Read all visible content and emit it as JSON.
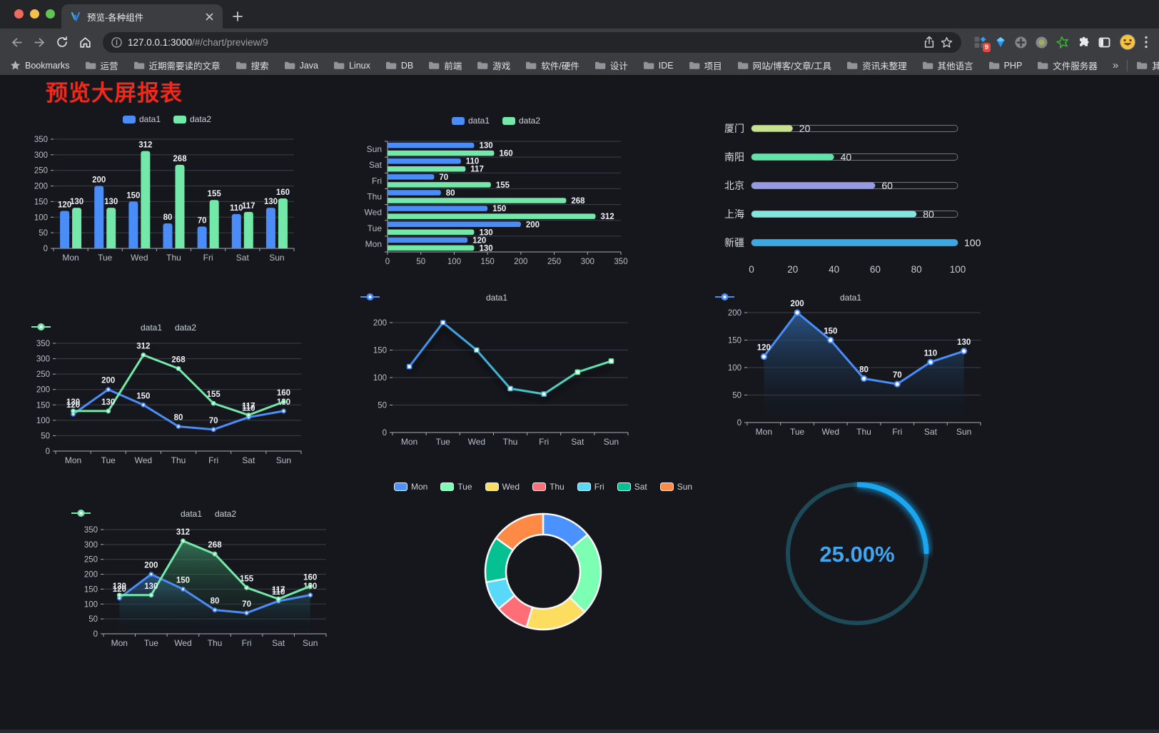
{
  "window": {
    "tab_title": "预览-各种组件",
    "url_host": "127.0.0.1:3000",
    "url_path": "/#/chart/preview/9",
    "bookmarks_label": "Bookmarks",
    "bookmarks": [
      "运营",
      "近期需要读的文章",
      "搜索",
      "Java",
      "Linux",
      "DB",
      "前端",
      "游戏",
      "软件/硬件",
      "设计",
      "IDE",
      "项目",
      "网站/博客/文章/工具",
      "资讯未整理",
      "其他语言",
      "PHP",
      "文件服务器"
    ],
    "bookmarks_overflow": "»",
    "other_bookmarks": "其他书签",
    "extension_badge": "9"
  },
  "page": {
    "title": "预览大屏报表"
  },
  "chart_data": [
    {
      "id": "bar-vertical",
      "type": "bar",
      "categories": [
        "Mon",
        "Tue",
        "Wed",
        "Thu",
        "Fri",
        "Sat",
        "Sun"
      ],
      "series": [
        {
          "name": "data1",
          "color": "#4b8df8",
          "values": [
            120,
            200,
            150,
            80,
            70,
            110,
            130
          ]
        },
        {
          "name": "data2",
          "color": "#73e8a8",
          "values": [
            130,
            130,
            312,
            268,
            155,
            117,
            160
          ]
        }
      ],
      "ylim": [
        0,
        350
      ],
      "ytick_step": 50,
      "labels": true,
      "legend_position": "top"
    },
    {
      "id": "bar-horizontal",
      "type": "hbar",
      "categories": [
        "Mon",
        "Tue",
        "Wed",
        "Thu",
        "Fri",
        "Sat",
        "Sun"
      ],
      "series": [
        {
          "name": "data1",
          "color": "#4b8df8",
          "values": [
            120,
            200,
            150,
            80,
            70,
            110,
            130
          ]
        },
        {
          "name": "data2",
          "color": "#73e8a8",
          "values": [
            130,
            130,
            312,
            268,
            155,
            117,
            160
          ]
        }
      ],
      "xlim": [
        0,
        350
      ],
      "xtick_step": 50,
      "labels": true,
      "legend_position": "top"
    },
    {
      "id": "progress-bars",
      "type": "progress",
      "max": 100,
      "xticks": [
        0,
        20,
        40,
        60,
        80,
        100
      ],
      "rows": [
        {
          "label": "厦门",
          "value": 20,
          "color": "#c6e38b"
        },
        {
          "label": "南阳",
          "value": 40,
          "color": "#5fe3a7"
        },
        {
          "label": "北京",
          "value": 60,
          "color": "#9699e3"
        },
        {
          "label": "上海",
          "value": 80,
          "color": "#84e4de"
        },
        {
          "label": "新疆",
          "value": 100,
          "color": "#3ba8e2"
        }
      ]
    },
    {
      "id": "line-two",
      "type": "line",
      "marker": "dot",
      "categories": [
        "Mon",
        "Tue",
        "Wed",
        "Thu",
        "Fri",
        "Sat",
        "Sun"
      ],
      "series": [
        {
          "name": "data1",
          "color": "#4b8df8",
          "values": [
            120,
            200,
            150,
            80,
            70,
            110,
            130
          ]
        },
        {
          "name": "data2",
          "color": "#73e8a8",
          "values": [
            130,
            130,
            312,
            268,
            155,
            117,
            160
          ]
        }
      ],
      "ylim": [
        0,
        350
      ],
      "ytick_step": 50,
      "labels": true,
      "legend_position": "top"
    },
    {
      "id": "line-gradient",
      "type": "line",
      "marker": "square",
      "shadow": true,
      "categories": [
        "Mon",
        "Tue",
        "Wed",
        "Thu",
        "Fri",
        "Sat",
        "Sun"
      ],
      "series": [
        {
          "name": "data1",
          "color": "#4b8df8",
          "gradient": [
            "#4287f5",
            "#43b9cf",
            "#67efa3"
          ],
          "values": [
            120,
            200,
            150,
            80,
            70,
            110,
            130
          ]
        }
      ],
      "ylim": [
        0,
        200
      ],
      "ytick_step": 50,
      "labels": false,
      "legend_position": "top"
    },
    {
      "id": "area-blue",
      "type": "line",
      "marker": "ring",
      "area": true,
      "categories": [
        "Mon",
        "Tue",
        "Wed",
        "Thu",
        "Fri",
        "Sat",
        "Sun"
      ],
      "series": [
        {
          "name": "data1",
          "color": "#4b8df8",
          "area_colors": [
            "rgba(46,96,152,0.85)",
            "rgba(18,26,38,0)"
          ],
          "values": [
            120,
            200,
            150,
            80,
            70,
            110,
            130
          ]
        }
      ],
      "ylim": [
        0,
        200
      ],
      "ytick_step": 50,
      "labels": true,
      "legend_position": "top"
    },
    {
      "id": "line-area-two",
      "type": "line",
      "marker": "dot",
      "area": true,
      "categories": [
        "Mon",
        "Tue",
        "Wed",
        "Thu",
        "Fri",
        "Sat",
        "Sun"
      ],
      "series": [
        {
          "name": "data1",
          "color": "#4b8df8",
          "area_colors": [
            "rgba(53,108,166,0.7)",
            "rgba(18,26,38,0)"
          ],
          "values": [
            120,
            200,
            150,
            80,
            70,
            110,
            130
          ]
        },
        {
          "name": "data2",
          "color": "#73e8a8",
          "area_colors": [
            "rgba(62,152,108,0.7)",
            "rgba(18,30,24,0)"
          ],
          "values": [
            130,
            130,
            312,
            268,
            155,
            117,
            160
          ]
        }
      ],
      "ylim": [
        0,
        350
      ],
      "ytick_step": 50,
      "labels": true,
      "legend_position": "top"
    },
    {
      "id": "donut",
      "type": "donut",
      "categories": [
        "Mon",
        "Tue",
        "Wed",
        "Thu",
        "Fri",
        "Sat",
        "Sun"
      ],
      "values": [
        120,
        200,
        150,
        80,
        70,
        110,
        130
      ],
      "colors": [
        "#4992ff",
        "#7cffb2",
        "#fddd60",
        "#ff6e76",
        "#58d9f9",
        "#05c091",
        "#ff8a45"
      ],
      "legend_position": "top"
    },
    {
      "id": "gauge",
      "type": "gauge",
      "value": 25,
      "display": "25.00%",
      "track_color": "#1d4a57",
      "bar_color": "#1aa7f2",
      "text_color": "#41a6f0"
    }
  ]
}
